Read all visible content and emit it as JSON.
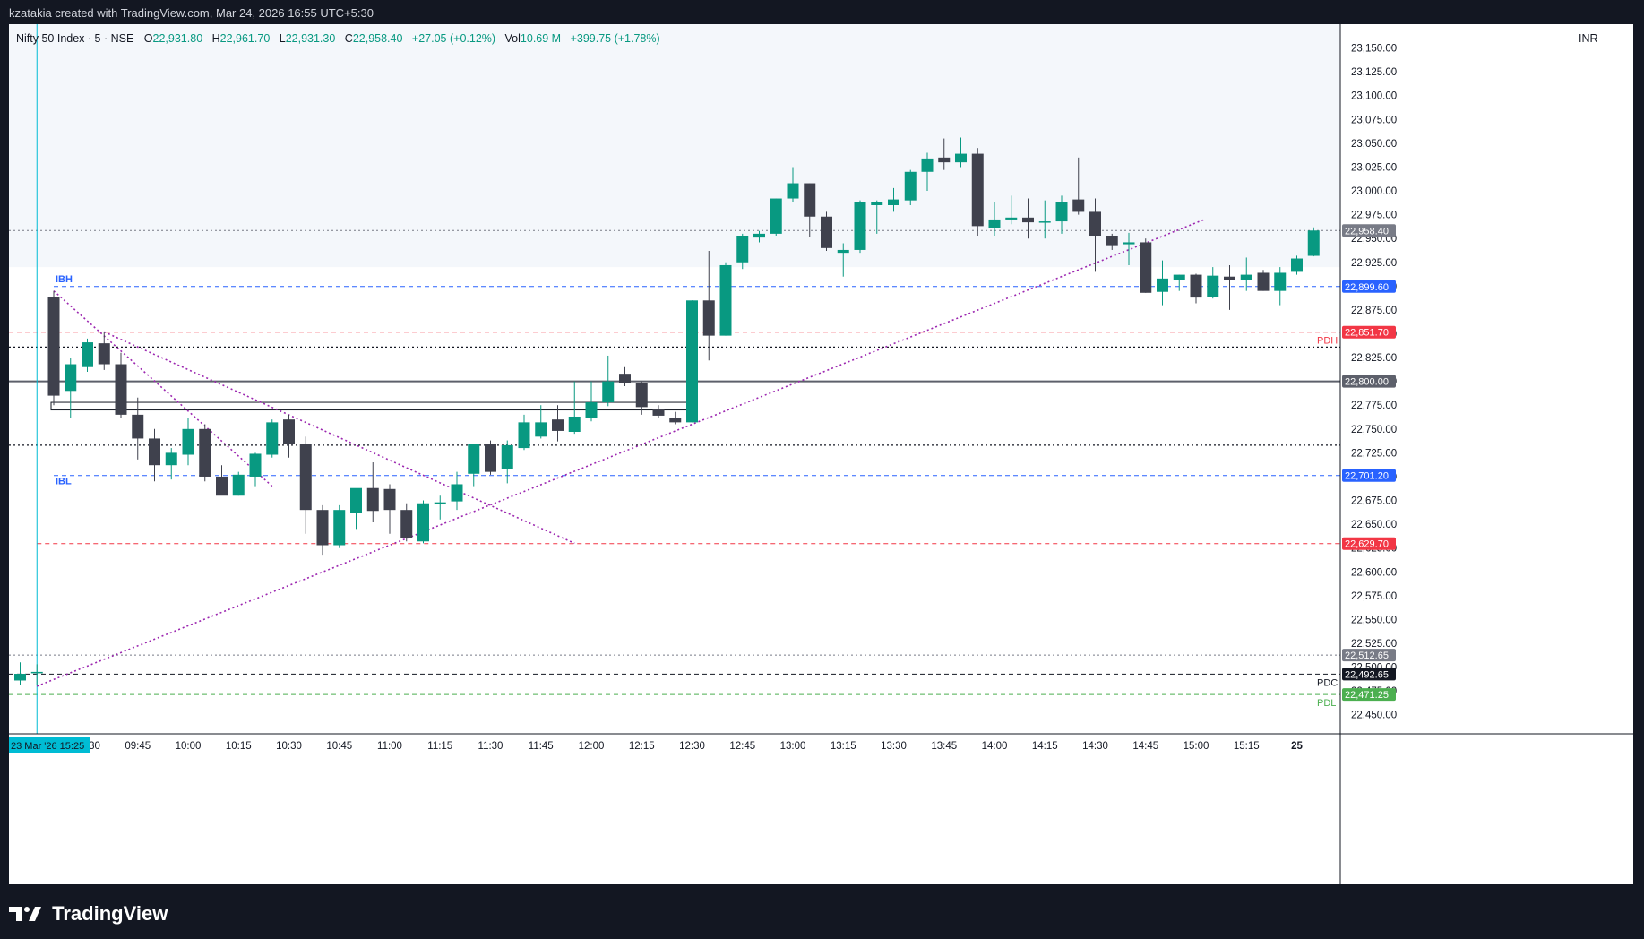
{
  "header": {
    "attribution": "kzatakia created with TradingView.com, Mar 24, 2026 16:55 UTC+5:30"
  },
  "legend": {
    "symbol": "Nifty 50 Index · 5 · NSE",
    "o_label": "O",
    "o": "22,931.80",
    "h_label": "H",
    "h": "22,961.70",
    "l_label": "L",
    "l": "22,931.30",
    "c_label": "C",
    "c": "22,958.40",
    "change": "+27.05 (+0.12%)",
    "vol_label": "Vol",
    "vol": "10.69 M",
    "vol_change": "+399.75 (+1.78%)"
  },
  "currency": "INR",
  "footer": {
    "brand": "TradingView"
  },
  "colors": {
    "up": "#089981",
    "down": "#3f414d",
    "purple": "#9c27b0",
    "blue": "#2962ff",
    "red": "#f23645",
    "green": "#4caf50"
  },
  "chart_data": {
    "type": "candlestick",
    "timeframe": "5",
    "ylim": [
      22430,
      23175
    ],
    "y_ticks": [
      22450,
      22475,
      22500,
      22525,
      22550,
      22575,
      22600,
      22625,
      22650,
      22675,
      22700,
      22725,
      22750,
      22775,
      22800,
      22825,
      22850,
      22875,
      22900,
      22925,
      22950,
      22975,
      23000,
      23025,
      23050,
      23075,
      23100,
      23125,
      23150
    ],
    "y_tick_labels": [
      "22,450.00",
      "22,475.00",
      "22,500.00",
      "22,525.00",
      "22,550.00",
      "22,575.00",
      "22,600.00",
      "22,625.00",
      "22,650.00",
      "22,675.00",
      "22,700.00",
      "22,725.00",
      "22,750.00",
      "22,775.00",
      "22,800.00",
      "22,825.00",
      "22,850.00",
      "22,875.00",
      "22,900.00",
      "22,925.00",
      "22,950.00",
      "22,975.00",
      "23,000.00",
      "23,025.00",
      "23,050.00",
      "23,075.00",
      "23,100.00",
      "23,125.00",
      "23,150.00"
    ],
    "x_ticks": [
      {
        "i": 4,
        "label": "09:30"
      },
      {
        "i": 7,
        "label": "09:45"
      },
      {
        "i": 10,
        "label": "10:00"
      },
      {
        "i": 13,
        "label": "10:15"
      },
      {
        "i": 16,
        "label": "10:30"
      },
      {
        "i": 19,
        "label": "10:45"
      },
      {
        "i": 22,
        "label": "11:00"
      },
      {
        "i": 25,
        "label": "11:15"
      },
      {
        "i": 28,
        "label": "11:30"
      },
      {
        "i": 31,
        "label": "11:45"
      },
      {
        "i": 34,
        "label": "12:00"
      },
      {
        "i": 37,
        "label": "12:15"
      },
      {
        "i": 40,
        "label": "12:30"
      },
      {
        "i": 43,
        "label": "12:45"
      },
      {
        "i": 46,
        "label": "13:00"
      },
      {
        "i": 49,
        "label": "13:15"
      },
      {
        "i": 52,
        "label": "13:30"
      },
      {
        "i": 55,
        "label": "13:45"
      },
      {
        "i": 58,
        "label": "14:00"
      },
      {
        "i": 61,
        "label": "14:15"
      },
      {
        "i": 64,
        "label": "14:30"
      },
      {
        "i": 67,
        "label": "14:45"
      },
      {
        "i": 70,
        "label": "15:00"
      },
      {
        "i": 73,
        "label": "15:15"
      },
      {
        "i": 76,
        "label": "25"
      }
    ],
    "x_marker": {
      "i": 1,
      "label": "23 Mar '26   15:25"
    },
    "candles": [
      {
        "o": 22486,
        "h": 22505,
        "l": 22481,
        "c": 22493
      },
      {
        "o": 22494,
        "h": 22503,
        "l": 22481,
        "c": 22495
      },
      {
        "o": 22889,
        "h": 22895,
        "l": 22775,
        "c": 22785
      },
      {
        "o": 22790,
        "h": 22825,
        "l": 22762,
        "c": 22818
      },
      {
        "o": 22815,
        "h": 22845,
        "l": 22810,
        "c": 22841
      },
      {
        "o": 22840,
        "h": 22852,
        "l": 22812,
        "c": 22818
      },
      {
        "o": 22818,
        "h": 22830,
        "l": 22762,
        "c": 22765
      },
      {
        "o": 22765,
        "h": 22783,
        "l": 22718,
        "c": 22740
      },
      {
        "o": 22740,
        "h": 22750,
        "l": 22695,
        "c": 22712
      },
      {
        "o": 22712,
        "h": 22730,
        "l": 22697,
        "c": 22725
      },
      {
        "o": 22723,
        "h": 22762,
        "l": 22712,
        "c": 22750
      },
      {
        "o": 22750,
        "h": 22755,
        "l": 22695,
        "c": 22700
      },
      {
        "o": 22700,
        "h": 22712,
        "l": 22685,
        "c": 22680
      },
      {
        "o": 22680,
        "h": 22705,
        "l": 22680,
        "c": 22702
      },
      {
        "o": 22700,
        "h": 22725,
        "l": 22690,
        "c": 22724
      },
      {
        "o": 22723,
        "h": 22760,
        "l": 22720,
        "c": 22757
      },
      {
        "o": 22760,
        "h": 22765,
        "l": 22720,
        "c": 22734
      },
      {
        "o": 22734,
        "h": 22742,
        "l": 22640,
        "c": 22665
      },
      {
        "o": 22665,
        "h": 22670,
        "l": 22618,
        "c": 22628
      },
      {
        "o": 22628,
        "h": 22670,
        "l": 22625,
        "c": 22665
      },
      {
        "o": 22662,
        "h": 22682,
        "l": 22645,
        "c": 22688
      },
      {
        "o": 22688,
        "h": 22715,
        "l": 22652,
        "c": 22664
      },
      {
        "o": 22687,
        "h": 22692,
        "l": 22640,
        "c": 22665
      },
      {
        "o": 22665,
        "h": 22672,
        "l": 22632,
        "c": 22636
      },
      {
        "o": 22632,
        "h": 22675,
        "l": 22630,
        "c": 22672
      },
      {
        "o": 22671,
        "h": 22680,
        "l": 22655,
        "c": 22673
      },
      {
        "o": 22674,
        "h": 22705,
        "l": 22665,
        "c": 22692
      },
      {
        "o": 22703,
        "h": 22730,
        "l": 22690,
        "c": 22734
      },
      {
        "o": 22734,
        "h": 22738,
        "l": 22702,
        "c": 22705
      },
      {
        "o": 22708,
        "h": 22738,
        "l": 22693,
        "c": 22733
      },
      {
        "o": 22730,
        "h": 22765,
        "l": 22728,
        "c": 22757
      },
      {
        "o": 22742,
        "h": 22775,
        "l": 22740,
        "c": 22757
      },
      {
        "o": 22760,
        "h": 22775,
        "l": 22737,
        "c": 22748
      },
      {
        "o": 22747,
        "h": 22800,
        "l": 22745,
        "c": 22763
      },
      {
        "o": 22762,
        "h": 22800,
        "l": 22758,
        "c": 22778
      },
      {
        "o": 22778,
        "h": 22827,
        "l": 22774,
        "c": 22800
      },
      {
        "o": 22808,
        "h": 22815,
        "l": 22795,
        "c": 22798
      },
      {
        "o": 22798,
        "h": 22800,
        "l": 22765,
        "c": 22773
      },
      {
        "o": 22771,
        "h": 22775,
        "l": 22762,
        "c": 22764
      },
      {
        "o": 22762,
        "h": 22768,
        "l": 22755,
        "c": 22757
      },
      {
        "o": 22757,
        "h": 22885,
        "l": 22757,
        "c": 22885
      },
      {
        "o": 22885,
        "h": 22937,
        "l": 22822,
        "c": 22848
      },
      {
        "o": 22848,
        "h": 22925,
        "l": 22848,
        "c": 22922
      },
      {
        "o": 22925,
        "h": 22955,
        "l": 22918,
        "c": 22953
      },
      {
        "o": 22951,
        "h": 22958,
        "l": 22946,
        "c": 22955
      },
      {
        "o": 22955,
        "h": 22992,
        "l": 22953,
        "c": 22992
      },
      {
        "o": 22992,
        "h": 23025,
        "l": 22988,
        "c": 23008
      },
      {
        "o": 23008,
        "h": 23008,
        "l": 22952,
        "c": 22973
      },
      {
        "o": 22973,
        "h": 22978,
        "l": 22937,
        "c": 22940
      },
      {
        "o": 22935,
        "h": 22945,
        "l": 22910,
        "c": 22938
      },
      {
        "o": 22938,
        "h": 22990,
        "l": 22935,
        "c": 22988
      },
      {
        "o": 22985,
        "h": 22990,
        "l": 22955,
        "c": 22988
      },
      {
        "o": 22985,
        "h": 23003,
        "l": 22978,
        "c": 22991
      },
      {
        "o": 22990,
        "h": 23022,
        "l": 22985,
        "c": 23020
      },
      {
        "o": 23020,
        "h": 23040,
        "l": 23000,
        "c": 23034
      },
      {
        "o": 23035,
        "h": 23055,
        "l": 23022,
        "c": 23030
      },
      {
        "o": 23030,
        "h": 23056,
        "l": 23025,
        "c": 23039
      },
      {
        "o": 23039,
        "h": 23045,
        "l": 22953,
        "c": 22963
      },
      {
        "o": 22961,
        "h": 22988,
        "l": 22953,
        "c": 22970
      },
      {
        "o": 22970,
        "h": 22995,
        "l": 22965,
        "c": 22972
      },
      {
        "o": 22972,
        "h": 22992,
        "l": 22950,
        "c": 22967
      },
      {
        "o": 22967,
        "h": 22990,
        "l": 22950,
        "c": 22968
      },
      {
        "o": 22968,
        "h": 22995,
        "l": 22955,
        "c": 22988
      },
      {
        "o": 22991,
        "h": 23035,
        "l": 22975,
        "c": 22978
      },
      {
        "o": 22978,
        "h": 22992,
        "l": 22915,
        "c": 22953
      },
      {
        "o": 22953,
        "h": 22955,
        "l": 22938,
        "c": 22943
      },
      {
        "o": 22944,
        "h": 22956,
        "l": 22922,
        "c": 22946
      },
      {
        "o": 22946,
        "h": 22950,
        "l": 22893,
        "c": 22893
      },
      {
        "o": 22894,
        "h": 22927,
        "l": 22880,
        "c": 22908
      },
      {
        "o": 22906,
        "h": 22912,
        "l": 22895,
        "c": 22912
      },
      {
        "o": 22912,
        "h": 22913,
        "l": 22882,
        "c": 22888
      },
      {
        "o": 22889,
        "h": 22920,
        "l": 22887,
        "c": 22911
      },
      {
        "o": 22910,
        "h": 22922,
        "l": 22875,
        "c": 22906
      },
      {
        "o": 22906,
        "h": 22930,
        "l": 22895,
        "c": 22912
      },
      {
        "o": 22914,
        "h": 22917,
        "l": 22895,
        "c": 22895
      },
      {
        "o": 22895,
        "h": 22920,
        "l": 22880,
        "c": 22914
      },
      {
        "o": 22915,
        "h": 22932,
        "l": 22912,
        "c": 22929
      },
      {
        "o": 22931.8,
        "h": 22961.7,
        "l": 22931.3,
        "c": 22958.4
      }
    ],
    "levels": [
      {
        "name": "IBH",
        "price": 22899.6,
        "label": "IBH",
        "price_label": "22,899.60",
        "style": "dashed",
        "color": "#2962ff"
      },
      {
        "name": "PDH",
        "price": 22851.7,
        "label": "PDH",
        "price_label": "22,851.70",
        "style": "dashed",
        "color": "#f23645"
      },
      {
        "name": "IBL",
        "price": 22701.2,
        "label": "IBL",
        "price_label": "22,701.20",
        "style": "dashed",
        "color": "#2962ff"
      },
      {
        "name": "low",
        "price": 22629.7,
        "label": "",
        "price_label": "22,629.70",
        "style": "dashed",
        "color": "#f23645"
      },
      {
        "name": "PDC",
        "price": 22492.65,
        "label": "PDC",
        "price_label": "22,492.65",
        "style": "dashed",
        "color": "#131722"
      },
      {
        "name": "PDL",
        "price": 22471.25,
        "label": "PDL",
        "price_label": "22,471.25",
        "style": "dashed",
        "color": "#4caf50"
      },
      {
        "name": "round",
        "price": 22800,
        "label": "",
        "price_label": "22,800.00",
        "style": "solid",
        "color": "#5d606b"
      },
      {
        "name": "prev-close-tag",
        "price": 22512.65,
        "label": "",
        "price_label": "22,512.65",
        "style": "dotted",
        "color": "#787b86"
      },
      {
        "name": "last-price",
        "price": 22958.4,
        "label": "",
        "price_label": "22,958.40",
        "style": "dotted",
        "color": "#787b86"
      }
    ],
    "extra_lines": [
      {
        "price": 22836,
        "style": "dotted",
        "color": "#131722"
      },
      {
        "price": 22733,
        "style": "dotted",
        "color": "#131722"
      }
    ],
    "trend_lines": [
      {
        "from": {
          "i": 1,
          "p": 22480
        },
        "to": {
          "i": 70.5,
          "p": 22970
        }
      },
      {
        "from": {
          "i": 2,
          "p": 22895
        },
        "to": {
          "i": 15,
          "p": 22690
        }
      },
      {
        "from": {
          "i": 5,
          "p": 22852
        },
        "to": {
          "i": 33,
          "p": 22630
        }
      }
    ],
    "zones": [
      {
        "from_i": 2,
        "to_i": 40,
        "top": 22778,
        "bottom": 22770
      },
      {
        "from_i": -5,
        "to_i": 80,
        "top": 23175,
        "bottom": 22920
      }
    ]
  }
}
